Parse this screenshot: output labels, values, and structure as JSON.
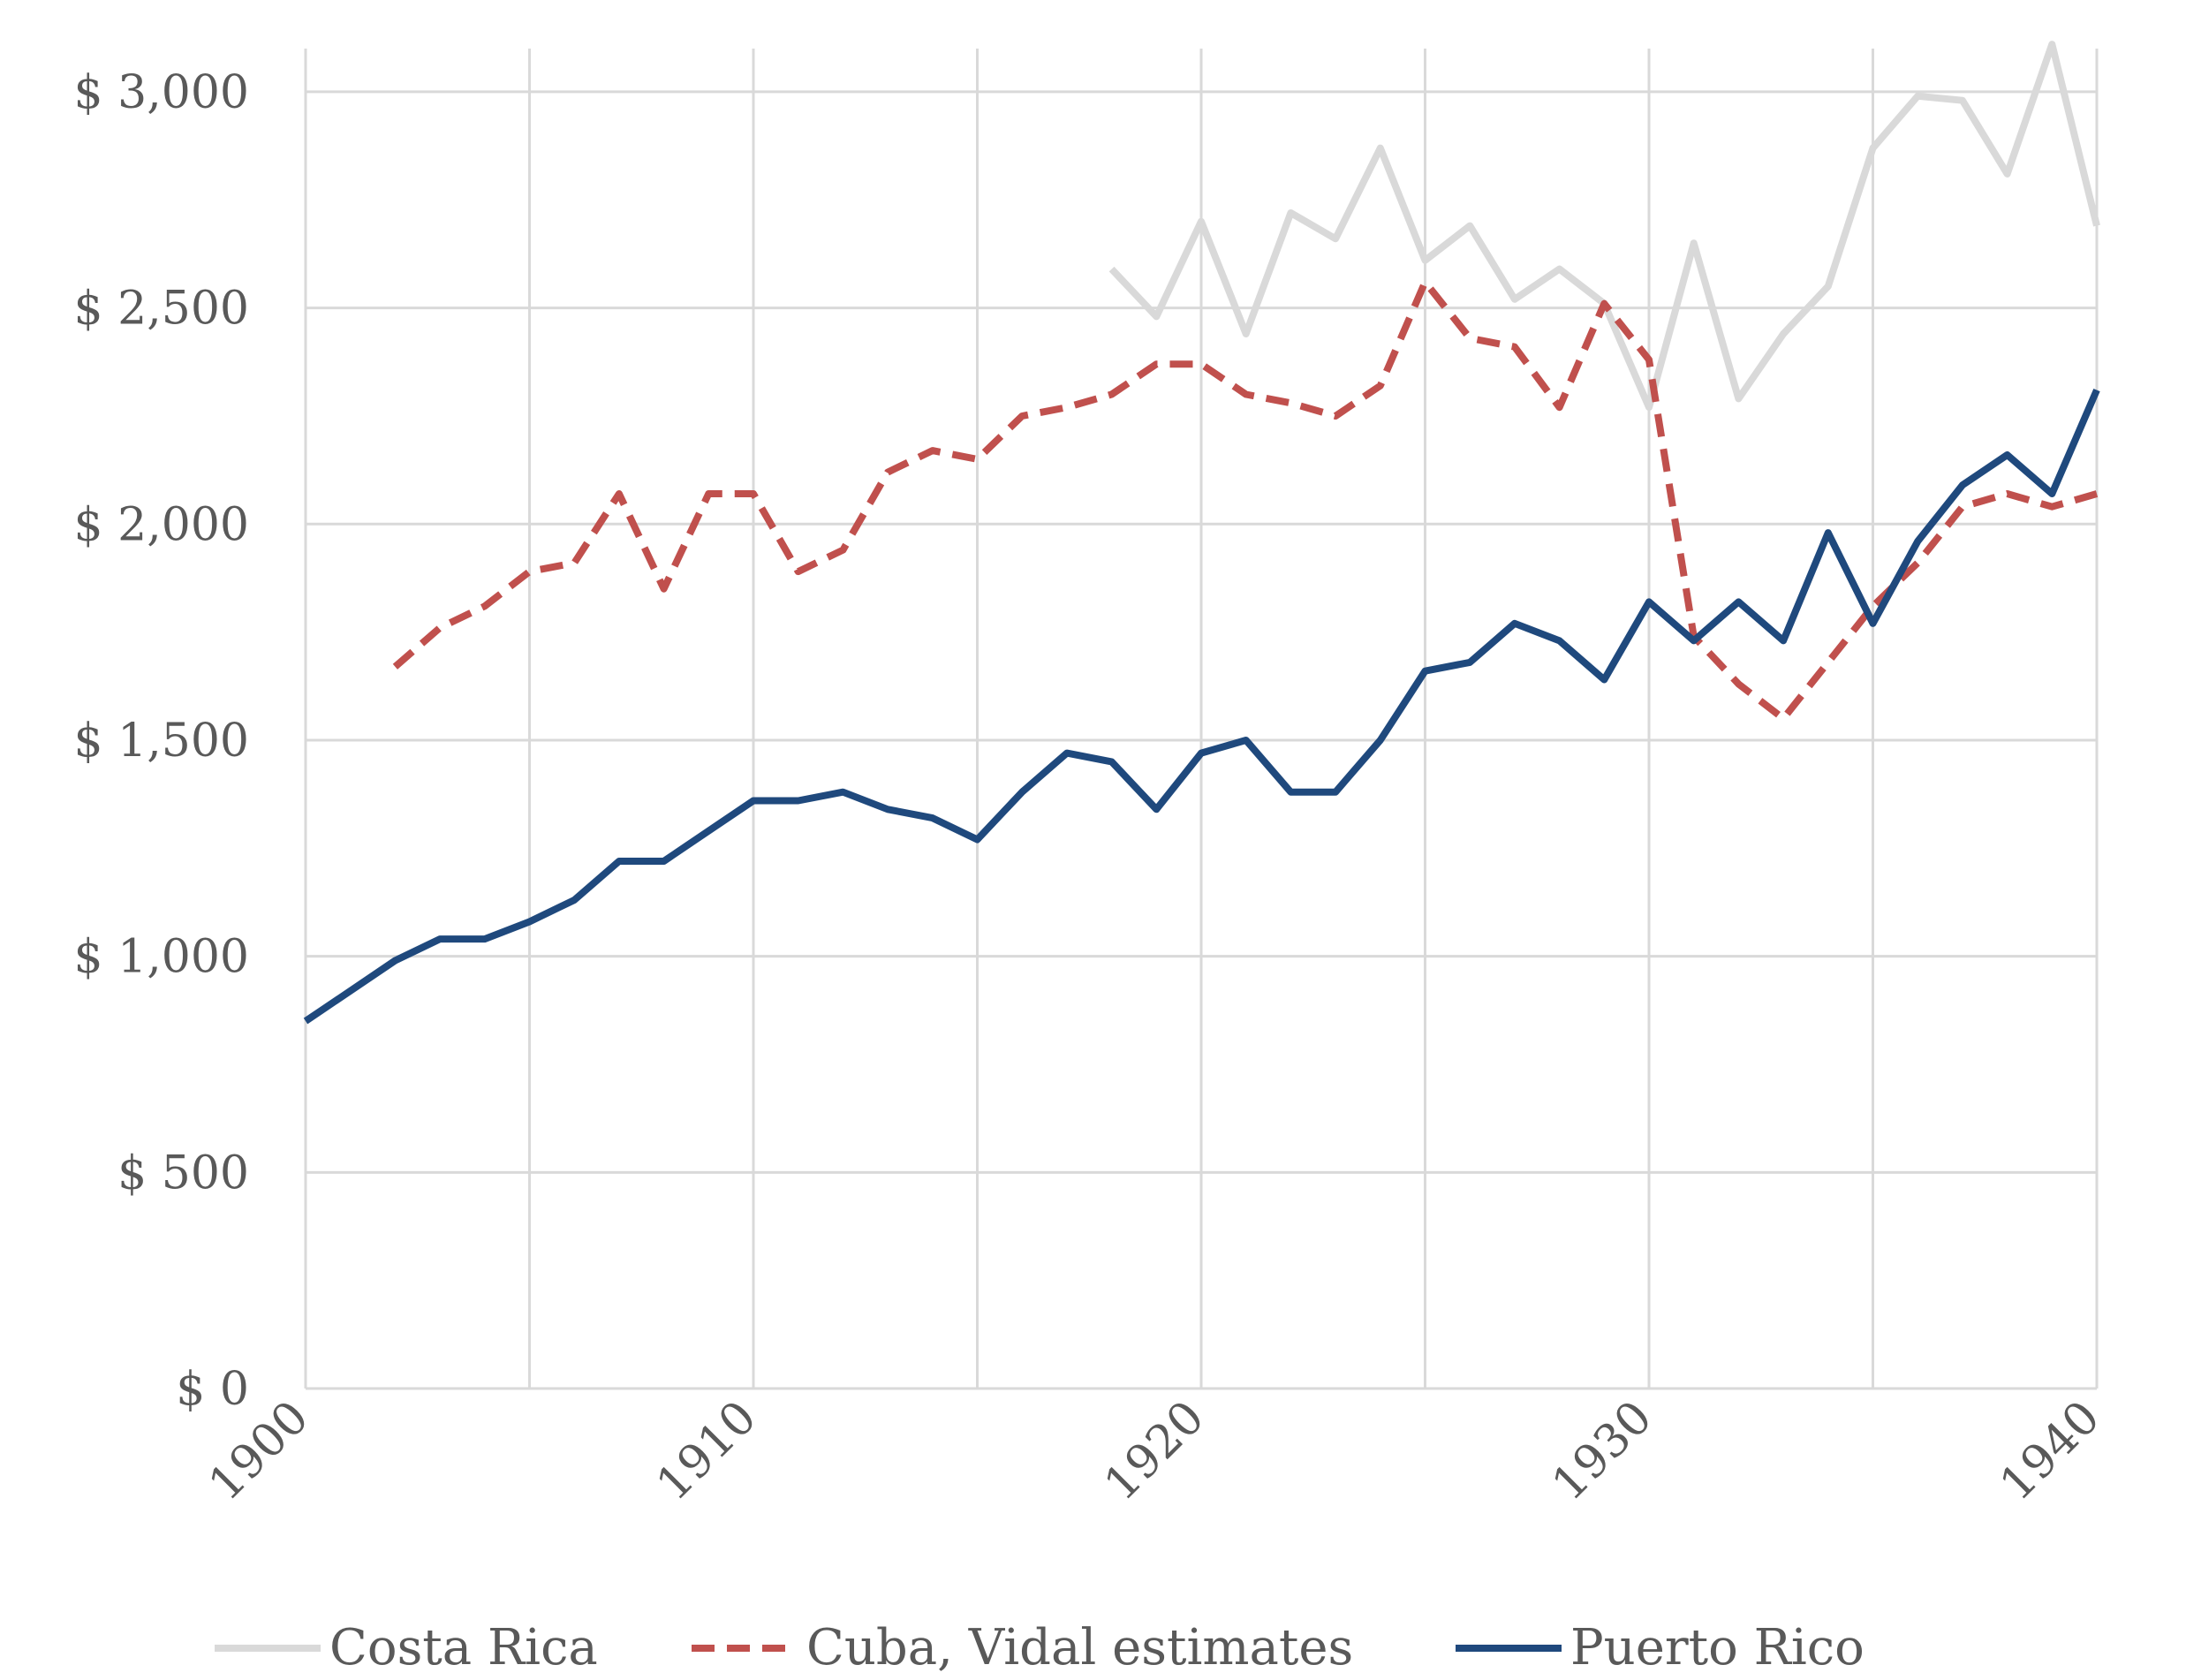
{
  "chart_data": {
    "type": "line",
    "title": "",
    "xlabel": "",
    "ylabel": "",
    "xlim": [
      1900,
      1940
    ],
    "ylim": [
      0,
      3100
    ],
    "x_ticks": [
      1900,
      1910,
      1920,
      1930,
      1940
    ],
    "x_tick_labels": [
      "1900",
      "1910",
      "1920",
      "1930",
      "1940"
    ],
    "y_ticks": [
      0,
      500,
      1000,
      1500,
      2000,
      2500,
      3000
    ],
    "y_tick_labels": [
      "$ 0",
      "$ 500",
      "$ 1,000",
      "$ 1,500",
      "$ 2,000",
      "$ 2,500",
      "$ 3,000"
    ],
    "grid": true,
    "legend_position": "bottom",
    "series": [
      {
        "name": "Costa Rica",
        "color": "#d9d9d9",
        "dash": "solid",
        "x": [
          1918,
          1919,
          1920,
          1921,
          1922,
          1923,
          1924,
          1925,
          1926,
          1927,
          1928,
          1929,
          1930,
          1931,
          1932,
          1933,
          1934,
          1935,
          1936,
          1937,
          1938,
          1939,
          1940
        ],
        "values": [
          2590,
          2480,
          2700,
          2440,
          2720,
          2660,
          2870,
          2610,
          2690,
          2520,
          2590,
          2510,
          2270,
          2650,
          2290,
          2440,
          2550,
          2870,
          2990,
          2980,
          2810,
          3110,
          2690
        ]
      },
      {
        "name": "Cuba, Vidal estimates",
        "color": "#c0504d",
        "dash": "dashed",
        "x": [
          1902,
          1903,
          1904,
          1905,
          1906,
          1907,
          1908,
          1909,
          1910,
          1911,
          1912,
          1913,
          1914,
          1915,
          1916,
          1917,
          1918,
          1919,
          1920,
          1921,
          1922,
          1923,
          1924,
          1925,
          1926,
          1927,
          1928,
          1929,
          1930,
          1931,
          1932,
          1933,
          1934,
          1935,
          1936,
          1937,
          1938,
          1939,
          1940
        ],
        "values": [
          1670,
          1760,
          1810,
          1890,
          1910,
          2070,
          1850,
          2070,
          2070,
          1890,
          1940,
          2120,
          2170,
          2150,
          2250,
          2270,
          2300,
          2370,
          2370,
          2300,
          2280,
          2250,
          2320,
          2560,
          2430,
          2410,
          2270,
          2510,
          2380,
          1740,
          1630,
          1550,
          1680,
          1810,
          1910,
          2040,
          2070,
          2040,
          2070
        ]
      },
      {
        "name": "Puerto Rico",
        "color": "#1f497d",
        "dash": "solid",
        "x": [
          1900,
          1901,
          1902,
          1903,
          1904,
          1905,
          1906,
          1907,
          1908,
          1909,
          1910,
          1911,
          1912,
          1913,
          1914,
          1915,
          1916,
          1917,
          1918,
          1919,
          1920,
          1921,
          1922,
          1923,
          1924,
          1925,
          1926,
          1927,
          1928,
          1929,
          1930,
          1931,
          1932,
          1933,
          1934,
          1935,
          1936,
          1937,
          1938,
          1939,
          1940
        ],
        "values": [
          850,
          920,
          990,
          1040,
          1040,
          1080,
          1130,
          1220,
          1220,
          1290,
          1360,
          1360,
          1380,
          1340,
          1320,
          1270,
          1380,
          1470,
          1450,
          1340,
          1470,
          1500,
          1380,
          1380,
          1500,
          1660,
          1680,
          1770,
          1730,
          1640,
          1820,
          1730,
          1820,
          1730,
          1980,
          1770,
          1960,
          2090,
          2160,
          2070,
          2310
        ]
      }
    ]
  }
}
